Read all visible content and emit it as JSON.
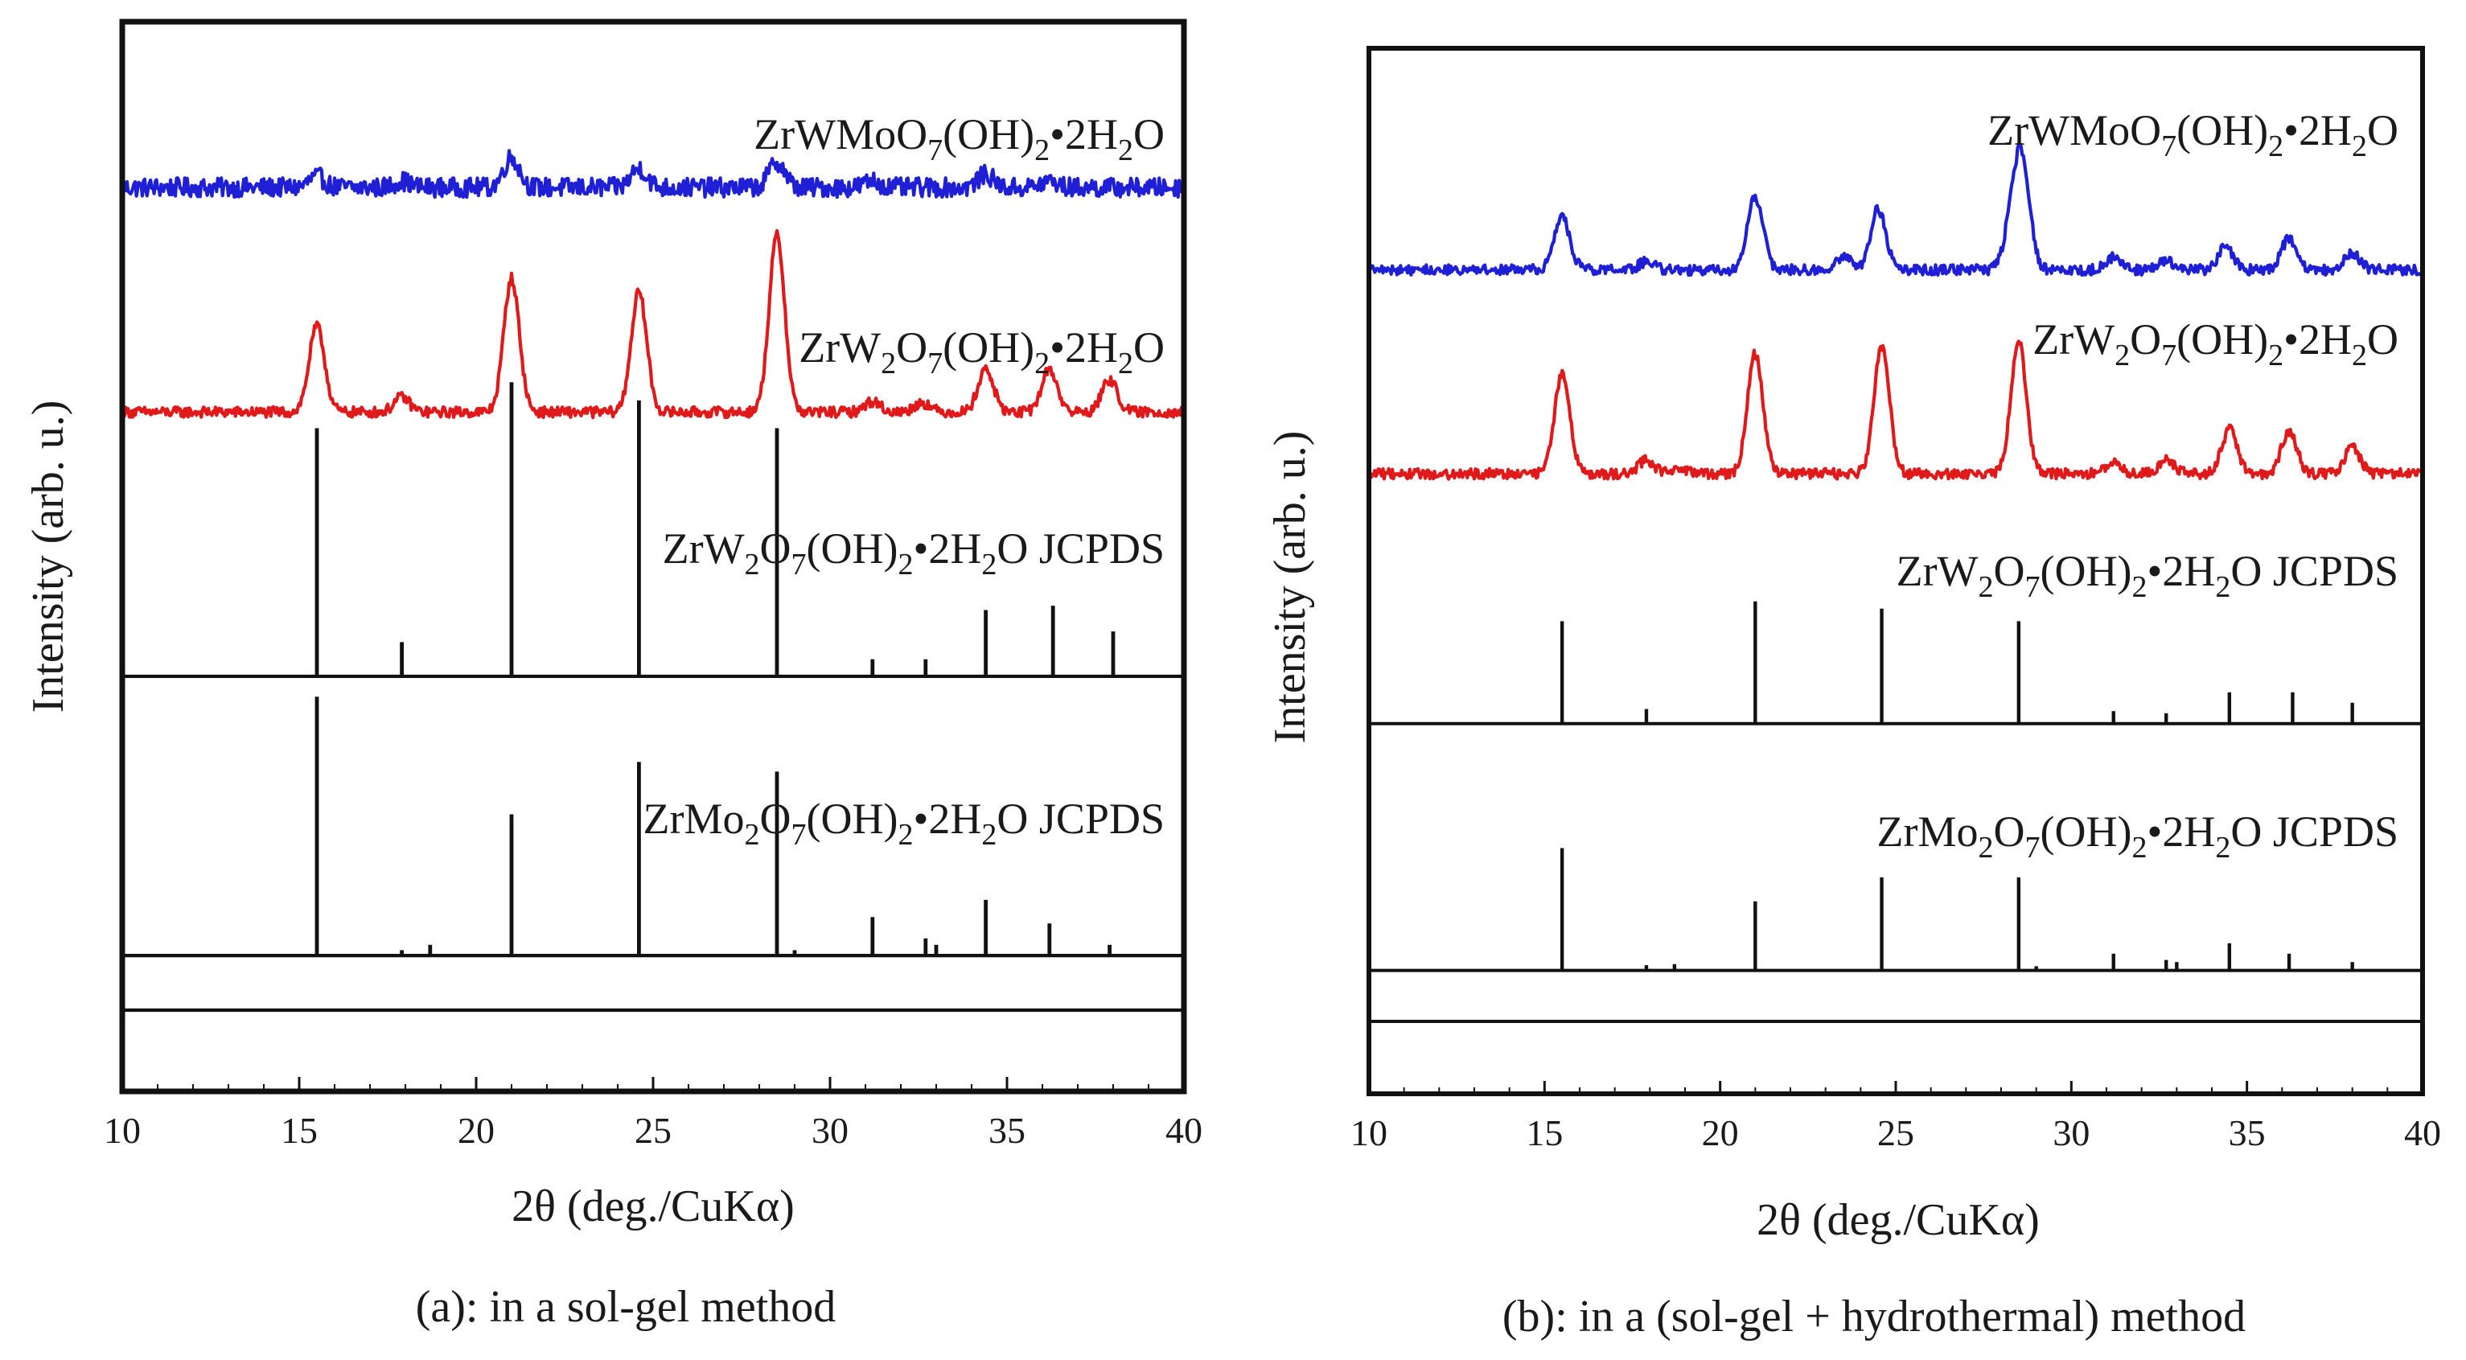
{
  "chart_data": [
    {
      "panel": "a",
      "type": "line",
      "caption": "(a): in a sol-gel method",
      "xlabel": "2θ (deg./CuKα)",
      "ylabel": "Intensity (arb. u.)",
      "xlim": [
        10,
        40
      ],
      "xticks": [
        10,
        15,
        20,
        25,
        30,
        35,
        40
      ],
      "series": [
        {
          "name": "ZrWMoO7(OH)2•2H2O",
          "label": {
            "parts": [
              [
                "ZrWMoO",
                ""
              ],
              [
                "7",
                "sub"
              ],
              [
                "(OH)",
                ""
              ],
              [
                "2",
                "sub"
              ],
              [
                "•2H",
                ""
              ],
              [
                "2",
                "sub"
              ],
              [
                "O",
                ""
              ]
            ]
          },
          "color": "#1f1fd6",
          "style": "xrd",
          "baseline_frac": 0.155,
          "noise": 0.009,
          "peaks": [
            [
              15.5,
              0.01
            ],
            [
              17.9,
              0.006
            ],
            [
              21.0,
              0.028
            ],
            [
              24.6,
              0.018
            ],
            [
              28.5,
              0.024
            ],
            [
              31.2,
              0.006
            ],
            [
              34.4,
              0.012
            ],
            [
              36.2,
              0.006
            ]
          ]
        },
        {
          "name": "ZrW2O7(OH)2•2H2O",
          "label": {
            "parts": [
              [
                "ZrW",
                ""
              ],
              [
                "2",
                "sub"
              ],
              [
                "O",
                ""
              ],
              [
                "7",
                "sub"
              ],
              [
                "(OH)",
                ""
              ],
              [
                "2",
                "sub"
              ],
              [
                "•2H",
                ""
              ],
              [
                "2",
                "sub"
              ],
              [
                "O",
                ""
              ]
            ]
          },
          "color": "#e0191a",
          "style": "xrd",
          "baseline_frac": 0.365,
          "noise": 0.005,
          "peaks": [
            [
              15.5,
              0.08
            ],
            [
              17.9,
              0.014
            ],
            [
              21.0,
              0.125
            ],
            [
              24.6,
              0.112
            ],
            [
              28.5,
              0.165
            ],
            [
              31.2,
              0.01
            ],
            [
              32.6,
              0.009
            ],
            [
              34.4,
              0.04
            ],
            [
              36.2,
              0.04
            ],
            [
              37.9,
              0.03
            ]
          ]
        },
        {
          "name": "ZrW2O7(OH)2•2H2O JCPDS",
          "label": {
            "parts": [
              [
                "ZrW",
                ""
              ],
              [
                "2",
                "sub"
              ],
              [
                "O",
                ""
              ],
              [
                "7",
                "sub"
              ],
              [
                "(OH)",
                ""
              ],
              [
                "2",
                "sub"
              ],
              [
                "•2H",
                ""
              ],
              [
                "2",
                "sub"
              ],
              [
                "O JCPDS",
                ""
              ]
            ]
          },
          "color": "#111111",
          "style": "sticks",
          "baseline_frac": 0.612,
          "sticks": [
            [
              15.5,
              0.232
            ],
            [
              17.9,
              0.032
            ],
            [
              21.0,
              0.275
            ],
            [
              24.6,
              0.258
            ],
            [
              28.5,
              0.232
            ],
            [
              31.2,
              0.016
            ],
            [
              32.7,
              0.016
            ],
            [
              34.4,
              0.062
            ],
            [
              36.3,
              0.066
            ],
            [
              38.0,
              0.042
            ]
          ]
        },
        {
          "name": "ZrMo2O7(OH)2•2H2O JCPDS",
          "label": {
            "parts": [
              [
                "ZrMo",
                ""
              ],
              [
                "2",
                "sub"
              ],
              [
                "O",
                ""
              ],
              [
                "7",
                "sub"
              ],
              [
                "(OH)",
                ""
              ],
              [
                "2",
                "sub"
              ],
              [
                "•2H",
                ""
              ],
              [
                "2",
                "sub"
              ],
              [
                "O JCPDS",
                ""
              ]
            ]
          },
          "color": "#111111",
          "style": "sticks",
          "baseline_frac": 0.873,
          "sticks": [
            [
              15.5,
              0.242
            ],
            [
              17.9,
              0.005
            ],
            [
              18.7,
              0.01
            ],
            [
              21.0,
              0.132
            ],
            [
              24.6,
              0.181
            ],
            [
              28.5,
              0.172
            ],
            [
              29.0,
              0.005
            ],
            [
              31.2,
              0.036
            ],
            [
              32.7,
              0.016
            ],
            [
              33.0,
              0.01
            ],
            [
              34.4,
              0.052
            ],
            [
              36.2,
              0.03
            ],
            [
              37.9,
              0.01
            ]
          ]
        }
      ]
    },
    {
      "panel": "b",
      "type": "line",
      "caption": "(b):  in a (sol-gel + hydrothermal) method",
      "xlabel": "2θ (deg./CuKα)",
      "ylabel": "Intensity (arb. u.)",
      "xlim": [
        10,
        40
      ],
      "xticks": [
        10,
        15,
        20,
        25,
        30,
        35,
        40
      ],
      "series": [
        {
          "name": "ZrWMoO7(OH)2•2H2O",
          "label": {
            "parts": [
              [
                "ZrWMoO",
                ""
              ],
              [
                "7",
                "sub"
              ],
              [
                "(OH)",
                ""
              ],
              [
                "2",
                "sub"
              ],
              [
                "•2H",
                ""
              ],
              [
                "2",
                "sub"
              ],
              [
                "O",
                ""
              ]
            ]
          },
          "color": "#1f1fd6",
          "style": "xrd",
          "baseline_frac": 0.212,
          "noise": 0.005,
          "peaks": [
            [
              15.5,
              0.05
            ],
            [
              17.9,
              0.008
            ],
            [
              21.0,
              0.07
            ],
            [
              23.5,
              0.012
            ],
            [
              24.5,
              0.058
            ],
            [
              28.3,
              0.04
            ],
            [
              28.6,
              0.098
            ],
            [
              31.2,
              0.012
            ],
            [
              32.7,
              0.008
            ],
            [
              34.4,
              0.022
            ],
            [
              36.2,
              0.03
            ],
            [
              38.0,
              0.016
            ]
          ]
        },
        {
          "name": "ZrW2O7(OH)2•2H2O",
          "label": {
            "parts": [
              [
                "ZrW",
                ""
              ],
              [
                "2",
                "sub"
              ],
              [
                "O",
                ""
              ],
              [
                "7",
                "sub"
              ],
              [
                "(OH)",
                ""
              ],
              [
                "2",
                "sub"
              ],
              [
                "•2H",
                ""
              ],
              [
                "2",
                "sub"
              ],
              [
                "O",
                ""
              ]
            ]
          },
          "color": "#e0191a",
          "style": "xrd",
          "baseline_frac": 0.407,
          "noise": 0.005,
          "peaks": [
            [
              15.5,
              0.094
            ],
            [
              17.9,
              0.013
            ],
            [
              18.8,
              0.006
            ],
            [
              21.0,
              0.115
            ],
            [
              24.6,
              0.123
            ],
            [
              28.5,
              0.127
            ],
            [
              31.2,
              0.012
            ],
            [
              32.7,
              0.014
            ],
            [
              34.5,
              0.042
            ],
            [
              36.2,
              0.041
            ],
            [
              38.0,
              0.025
            ]
          ]
        },
        {
          "name": "ZrW2O7(OH)2•2H2O JCPDS",
          "label": {
            "parts": [
              [
                "ZrW",
                ""
              ],
              [
                "2",
                "sub"
              ],
              [
                "O",
                ""
              ],
              [
                "7",
                "sub"
              ],
              [
                "(OH)",
                ""
              ],
              [
                "2",
                "sub"
              ],
              [
                "•2H",
                ""
              ],
              [
                "2",
                "sub"
              ],
              [
                "O JCPDS",
                ""
              ]
            ]
          },
          "color": "#111111",
          "style": "sticks",
          "baseline_frac": 0.646,
          "sticks": [
            [
              15.5,
              0.098
            ],
            [
              17.9,
              0.014
            ],
            [
              21.0,
              0.117
            ],
            [
              24.6,
              0.11
            ],
            [
              28.5,
              0.098
            ],
            [
              31.2,
              0.012
            ],
            [
              32.7,
              0.01
            ],
            [
              34.5,
              0.03
            ],
            [
              36.3,
              0.03
            ],
            [
              38.0,
              0.02
            ]
          ]
        },
        {
          "name": "ZrMo2O7(OH)2•2H2O JCPDS",
          "label": {
            "parts": [
              [
                "ZrMo",
                ""
              ],
              [
                "2",
                "sub"
              ],
              [
                "O",
                ""
              ],
              [
                "7",
                "sub"
              ],
              [
                "(OH)",
                ""
              ],
              [
                "2",
                "sub"
              ],
              [
                "•2H",
                ""
              ],
              [
                "2",
                "sub"
              ],
              [
                "O JCPDS",
                ""
              ]
            ]
          },
          "color": "#111111",
          "style": "sticks",
          "baseline_frac": 0.882,
          "sticks": [
            [
              15.5,
              0.117
            ],
            [
              17.9,
              0.005
            ],
            [
              18.7,
              0.006
            ],
            [
              21.0,
              0.066
            ],
            [
              24.6,
              0.089
            ],
            [
              28.5,
              0.089
            ],
            [
              29.0,
              0.004
            ],
            [
              31.2,
              0.016
            ],
            [
              32.7,
              0.01
            ],
            [
              33.0,
              0.008
            ],
            [
              34.5,
              0.026
            ],
            [
              36.2,
              0.016
            ],
            [
              38.0,
              0.008
            ]
          ]
        }
      ]
    }
  ]
}
